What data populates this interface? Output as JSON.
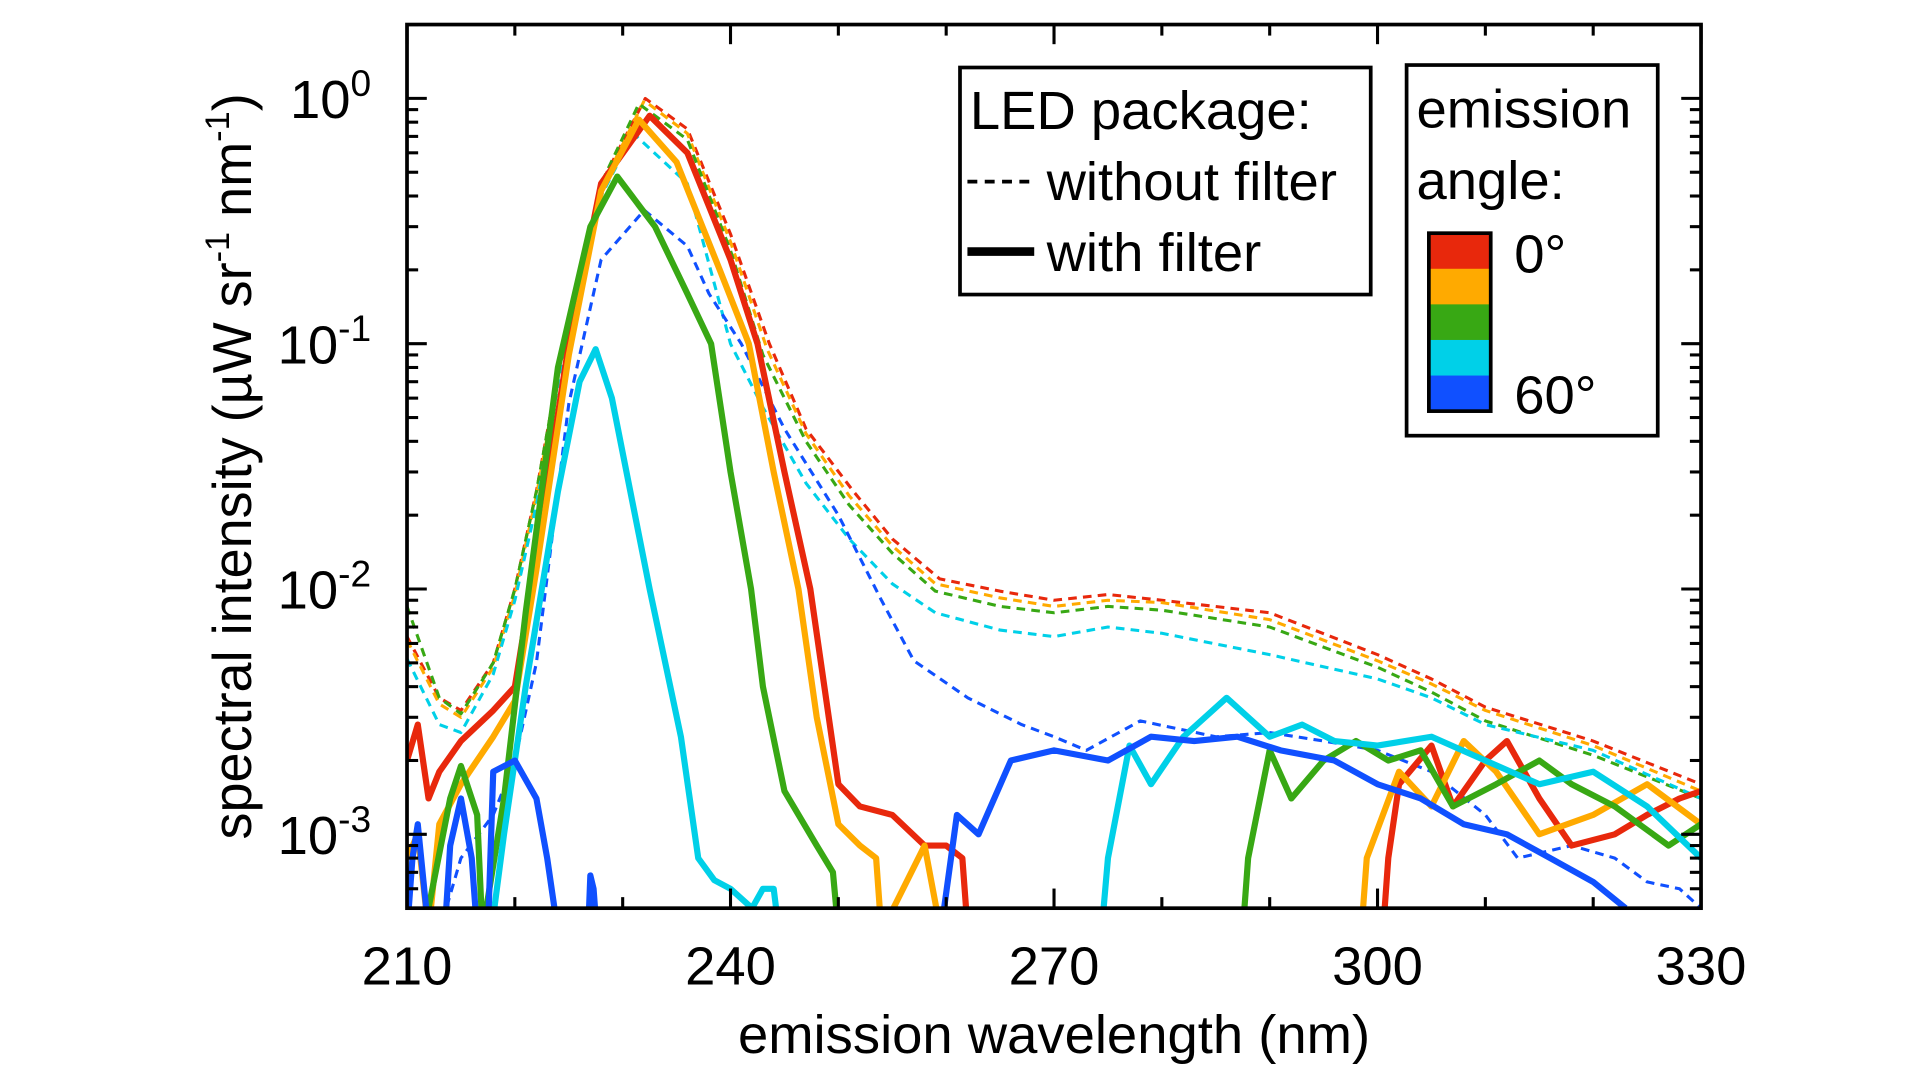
{
  "chart_data": {
    "type": "line",
    "xlabel": "emission wavelength (nm)",
    "ylabel_parts": [
      "spectral intensity (µW sr",
      "-1",
      " nm",
      "-1",
      ")"
    ],
    "xlim": [
      210,
      330
    ],
    "ylim": [
      0.0005,
      2.0
    ],
    "y_scale": "log",
    "x_ticks": [
      "210",
      "240",
      "270",
      "300",
      "330"
    ],
    "y_ticks": [
      {
        "base": "10",
        "exp": "0",
        "value": 1
      },
      {
        "base": "10",
        "exp": "-1",
        "value": 0.1
      },
      {
        "base": "10",
        "exp": "-2",
        "value": 0.01
      },
      {
        "base": "10",
        "exp": "-3",
        "value": 0.001
      }
    ],
    "grid": false,
    "legend_style": {
      "title": "LED package:",
      "dashed_label": "without filter",
      "solid_label": "with filter"
    },
    "legend_angle": {
      "title_line1": "emission",
      "title_line2": "angle:",
      "top_label": "0°",
      "bottom_label": "60°",
      "colors": [
        "#e8280c",
        "#ffaa00",
        "#38a814",
        "#00d0e8",
        "#1050ff"
      ]
    },
    "series": [
      {
        "color": "#e8280c",
        "style": "dashed",
        "x": [
          210,
          213,
          215,
          218,
          220,
          222,
          224.5,
          228,
          232.1,
          236,
          240,
          243.6,
          247,
          251.4,
          255,
          259.4,
          265,
          270,
          275,
          280,
          290,
          300,
          305,
          310,
          320,
          330
        ],
        "y": [
          0.0064,
          0.0036,
          0.0032,
          0.005,
          0.01,
          0.025,
          0.1,
          0.45,
          1.0,
          0.75,
          0.28,
          0.1,
          0.045,
          0.025,
          0.016,
          0.011,
          0.0098,
          0.009,
          0.0095,
          0.009,
          0.008,
          0.0054,
          0.0043,
          0.0033,
          0.0024,
          0.0016
        ]
      },
      {
        "color": "#ffaa00",
        "style": "dashed",
        "x": [
          210,
          213,
          215,
          218,
          220,
          222,
          224.5,
          228,
          232,
          236,
          240,
          243.4,
          247,
          251,
          255,
          259,
          265,
          270,
          275,
          280,
          290,
          300,
          305,
          310,
          320,
          330
        ],
        "y": [
          0.0062,
          0.0034,
          0.003,
          0.0048,
          0.0095,
          0.024,
          0.095,
          0.43,
          0.98,
          0.72,
          0.26,
          0.095,
          0.043,
          0.024,
          0.015,
          0.0105,
          0.0092,
          0.0085,
          0.009,
          0.0088,
          0.0075,
          0.0051,
          0.0041,
          0.0032,
          0.0023,
          0.0015
        ]
      },
      {
        "color": "#38a814",
        "style": "dashed",
        "x": [
          210,
          213,
          215,
          218,
          220,
          222,
          224.5,
          228,
          231.5,
          236,
          240,
          243,
          247,
          251,
          255,
          259,
          265,
          270,
          275,
          280,
          290,
          300,
          305,
          310,
          320,
          330
        ],
        "y": [
          0.0085,
          0.0036,
          0.0031,
          0.005,
          0.01,
          0.025,
          0.1,
          0.45,
          0.95,
          0.68,
          0.24,
          0.09,
          0.04,
          0.022,
          0.014,
          0.0098,
          0.0085,
          0.008,
          0.0085,
          0.0082,
          0.007,
          0.0048,
          0.0038,
          0.0029,
          0.0021,
          0.0014
        ]
      },
      {
        "color": "#00d0e8",
        "style": "dashed",
        "x": [
          210,
          213,
          215,
          218,
          220,
          222,
          224.5,
          228,
          231,
          236,
          240,
          243,
          247,
          251,
          255,
          259,
          265,
          270,
          275,
          280,
          290,
          300,
          305,
          310,
          320,
          330
        ],
        "y": [
          0.0052,
          0.0028,
          0.0026,
          0.0045,
          0.009,
          0.022,
          0.09,
          0.4,
          0.72,
          0.45,
          0.1,
          0.055,
          0.027,
          0.016,
          0.0105,
          0.008,
          0.0068,
          0.0064,
          0.007,
          0.0066,
          0.0054,
          0.0043,
          0.0036,
          0.0028,
          0.0022,
          0.0014
        ]
      },
      {
        "color": "#1050ff",
        "style": "dashed",
        "x": [
          210,
          213,
          215,
          218,
          220,
          222,
          225,
          228,
          232,
          236,
          238,
          241,
          245,
          250,
          254,
          257,
          262,
          267,
          270,
          273,
          278,
          285,
          290,
          295,
          300,
          305,
          310,
          313,
          318,
          322,
          325,
          328,
          330
        ],
        "y": [
          0.0004,
          0.0004,
          0.0008,
          0.0012,
          0.002,
          0.005,
          0.057,
          0.22,
          0.35,
          0.25,
          0.16,
          0.1,
          0.045,
          0.02,
          0.009,
          0.0051,
          0.0036,
          0.0028,
          0.0025,
          0.0022,
          0.0029,
          0.0025,
          0.0026,
          0.0024,
          0.0022,
          0.0018,
          0.0012,
          0.0008,
          0.0009,
          0.0008,
          0.00064,
          0.0006,
          0.0005
        ]
      },
      {
        "color": "#e8280c",
        "style": "solid",
        "x": [
          210,
          211,
          212,
          213,
          215,
          218,
          220,
          222,
          225,
          228,
          232.5,
          236,
          240,
          242.5,
          245,
          247.4,
          250,
          252,
          255,
          258,
          260,
          261.5,
          262,
          300.5,
          301,
          302,
          305,
          307,
          310,
          312,
          315,
          318,
          322,
          325,
          328,
          330
        ],
        "y": [
          0.002,
          0.0028,
          0.0014,
          0.0018,
          0.0024,
          0.0032,
          0.004,
          0.014,
          0.1,
          0.45,
          0.85,
          0.6,
          0.22,
          0.1,
          0.03,
          0.01,
          0.0016,
          0.0013,
          0.0012,
          0.0009,
          0.0009,
          0.0008,
          0.0004,
          0.0004,
          0.0008,
          0.0016,
          0.0023,
          0.0013,
          0.002,
          0.0024,
          0.0014,
          0.0009,
          0.001,
          0.0012,
          0.0014,
          0.0015
        ]
      },
      {
        "color": "#ffaa00",
        "style": "solid",
        "x": [
          210,
          211,
          212,
          213,
          215,
          218,
          220,
          222,
          225,
          228,
          231.5,
          235,
          239,
          241.7,
          244,
          246.3,
          248,
          250,
          252,
          253.5,
          254,
          256,
          258,
          259.5,
          298.5,
          299,
          302,
          305,
          308,
          311,
          315,
          320,
          325,
          330
        ],
        "y": [
          0.0008,
          0.001,
          0.0004,
          0.0011,
          0.0016,
          0.0025,
          0.0035,
          0.012,
          0.09,
          0.42,
          0.82,
          0.55,
          0.2,
          0.1,
          0.03,
          0.01,
          0.003,
          0.0011,
          0.0009,
          0.0008,
          0.0004,
          0.0006,
          0.0009,
          0.0004,
          0.0004,
          0.0008,
          0.0018,
          0.0013,
          0.0024,
          0.0018,
          0.001,
          0.0012,
          0.0016,
          0.0011
        ]
      },
      {
        "color": "#38a814",
        "style": "solid",
        "x": [
          211.5,
          212,
          214,
          215,
          216.5,
          217,
          219,
          221,
          224,
          227,
          229.5,
          233,
          236,
          238.2,
          240,
          241.9,
          243,
          245,
          248,
          249.5,
          250,
          287.5,
          288,
          290,
          292,
          295,
          298,
          301,
          304,
          307,
          311,
          315,
          318,
          322,
          327,
          330
        ],
        "y": [
          0.0004,
          0.0005,
          0.0014,
          0.0019,
          0.0012,
          0.0004,
          0.0014,
          0.008,
          0.08,
          0.3,
          0.48,
          0.3,
          0.16,
          0.1,
          0.03,
          0.01,
          0.004,
          0.0015,
          0.0009,
          0.0007,
          0.0004,
          0.0004,
          0.0008,
          0.0022,
          0.0014,
          0.002,
          0.0024,
          0.002,
          0.0022,
          0.0013,
          0.0016,
          0.002,
          0.0016,
          0.0013,
          0.0009,
          0.0011
        ]
      },
      {
        "color": "#00d0e8",
        "style": "solid",
        "x": [
          217.8,
          218.1,
          219,
          221,
          224,
          226,
          227.5,
          229,
          232.5,
          235.4,
          237,
          238.5,
          240,
          242,
          243,
          244,
          244.5,
          274.4,
          275,
          277,
          279,
          282,
          286,
          290,
          293,
          296,
          300,
          305,
          310,
          315,
          320,
          325,
          330
        ],
        "y": [
          0.0004,
          0.0005,
          0.001,
          0.004,
          0.025,
          0.07,
          0.095,
          0.06,
          0.01,
          0.0025,
          0.0008,
          0.00065,
          0.0006,
          0.0005,
          0.0006,
          0.0006,
          0.0004,
          0.0004,
          0.0008,
          0.0023,
          0.0016,
          0.0025,
          0.0036,
          0.0025,
          0.0028,
          0.0024,
          0.0023,
          0.0025,
          0.002,
          0.0016,
          0.0018,
          0.0013,
          0.0008
        ]
      },
      {
        "color": "#1050ff",
        "style": "solid",
        "x": [
          210,
          210.5,
          211,
          212,
          213.5,
          214,
          215,
          216,
          216.5,
          217.5,
          218,
          220,
          222,
          223,
          224,
          226.8,
          227,
          227.3,
          227.6,
          259.5,
          261,
          263,
          266,
          270,
          275,
          279,
          283,
          287,
          291,
          296,
          300,
          304,
          308,
          312,
          316,
          320,
          323
        ],
        "y": [
          0.0004,
          0.0008,
          0.0011,
          0.0004,
          0.0004,
          0.0009,
          0.0014,
          0.0008,
          0.0004,
          0.0004,
          0.0018,
          0.002,
          0.0014,
          0.0008,
          0.0004,
          0.0004,
          0.00068,
          0.0006,
          0.0004,
          0.0004,
          0.0012,
          0.001,
          0.002,
          0.0022,
          0.002,
          0.0025,
          0.0024,
          0.0025,
          0.0022,
          0.002,
          0.0016,
          0.0014,
          0.0011,
          0.001,
          0.0008,
          0.00064,
          0.0005
        ]
      }
    ]
  }
}
